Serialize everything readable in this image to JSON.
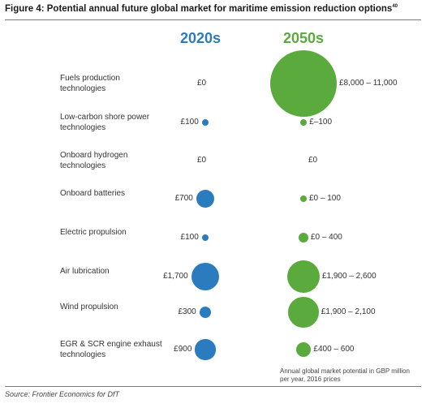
{
  "title": "Figure 4: Potential annual future global market for maritime emission reduction options",
  "title_ref": "40",
  "source": "Source: Frontier Economics for DfT",
  "note": "Annual global market potential in GBP million per year, 2016 prices",
  "colors": {
    "c2020": "#2b7bbf",
    "c2050": "#5aaa3e"
  },
  "chart_data": {
    "type": "bubble",
    "columns": [
      "2020s",
      "2050s"
    ],
    "unit": "GBP million per year, 2016 prices",
    "rows": [
      {
        "label": "Fuels production technologies",
        "v2020": "£0",
        "v2050": "£8,000 – 11,000",
        "s2020": 0,
        "s2050": 9500
      },
      {
        "label": "Low-carbon shore power technologies",
        "v2020": "£100",
        "v2050": "£–100",
        "s2020": 100,
        "s2050": 100
      },
      {
        "label": "Onboard hydrogen technologies",
        "v2020": "£0",
        "v2050": "£0",
        "s2020": 0,
        "s2050": 0
      },
      {
        "label": "Onboard batteries",
        "v2020": "£700",
        "v2050": "£0 – 100",
        "s2020": 700,
        "s2050": 50
      },
      {
        "label": "Electric propulsion",
        "v2020": "£100",
        "v2050": "£0 – 400",
        "s2020": 100,
        "s2050": 200
      },
      {
        "label": "Air lubrication",
        "v2020": "£1,700",
        "v2050": "£1,900 – 2,600",
        "s2020": 1700,
        "s2050": 2250
      },
      {
        "label": "Wind propulsion",
        "v2020": "£300",
        "v2050": "£1,900 – 2,100",
        "s2020": 300,
        "s2050": 2000
      },
      {
        "label": "EGR & SCR engine exhaust technologies",
        "v2020": "£900",
        "v2050": "£400 – 600",
        "s2020": 900,
        "s2050": 500
      }
    ]
  }
}
